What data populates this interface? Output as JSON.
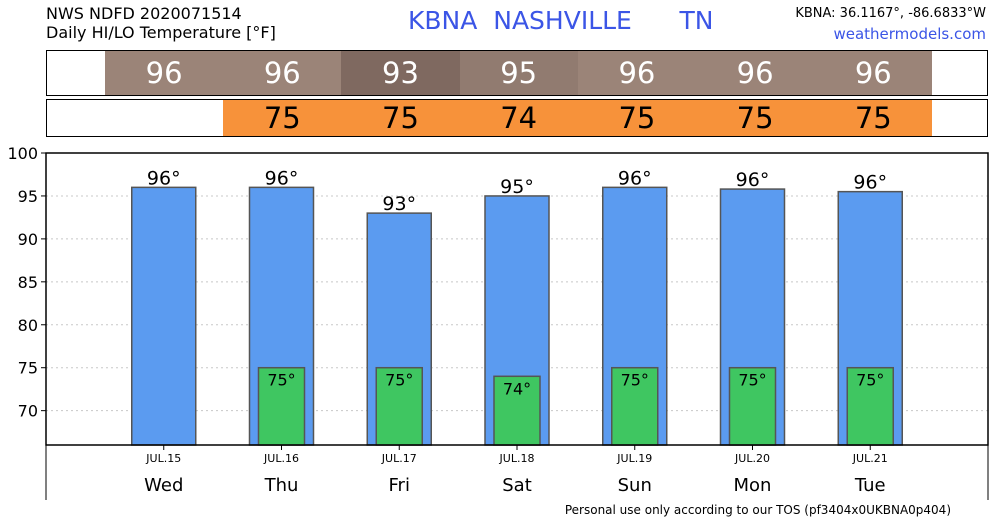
{
  "header": {
    "line1": "NWS NDFD 2020071514",
    "line2": "Daily HI/LO Temperature [°F]",
    "title": "KBNA  NASHVILLE      TN",
    "coords": "KBNA: 36.1167°, -86.6833°W",
    "site": "weathermodels.com"
  },
  "bands": {
    "hi": [
      {
        "text": "96",
        "color": "#9b8478"
      },
      {
        "text": "96",
        "color": "#9b8478"
      },
      {
        "text": "93",
        "color": "#7f6960"
      },
      {
        "text": "95",
        "color": "#917b70"
      },
      {
        "text": "96",
        "color": "#9b8478"
      },
      {
        "text": "96",
        "color": "#9b8478"
      },
      {
        "text": "96",
        "color": "#9b8478"
      }
    ],
    "lo": [
      {
        "text": "75",
        "color": "#f7923a"
      },
      {
        "text": "75",
        "color": "#f7923a"
      },
      {
        "text": "74",
        "color": "#f7923a"
      },
      {
        "text": "75",
        "color": "#f7923a"
      },
      {
        "text": "75",
        "color": "#f7923a"
      },
      {
        "text": "75",
        "color": "#f7923a"
      }
    ]
  },
  "chart_data": {
    "type": "bar",
    "categories": [
      "Wed",
      "Thu",
      "Fri",
      "Sat",
      "Sun",
      "Mon",
      "Tue"
    ],
    "dates": [
      "JUL.15",
      "JUL.16",
      "JUL.17",
      "JUL.18",
      "JUL.19",
      "JUL.20",
      "JUL.21"
    ],
    "series": [
      {
        "values": [
          96,
          96,
          93,
          95,
          96,
          95.8,
          95.5
        ],
        "color": "#5b9bf0"
      },
      {
        "values": [
          null,
          75,
          75,
          74,
          75,
          75,
          75
        ],
        "color": "#3fc661"
      }
    ],
    "hi_labels": [
      "96°",
      "96°",
      "93°",
      "95°",
      "96°",
      "96°",
      "96°"
    ],
    "lo_labels": [
      "",
      "75°",
      "75°",
      "74°",
      "75°",
      "75°",
      "75°"
    ],
    "ylim": [
      66,
      100
    ],
    "yticks": [
      70,
      75,
      80,
      85,
      90,
      95,
      100
    ],
    "grid": true
  },
  "footer": "Personal use only according to our TOS (pf3404x0UKBNA0p404)"
}
